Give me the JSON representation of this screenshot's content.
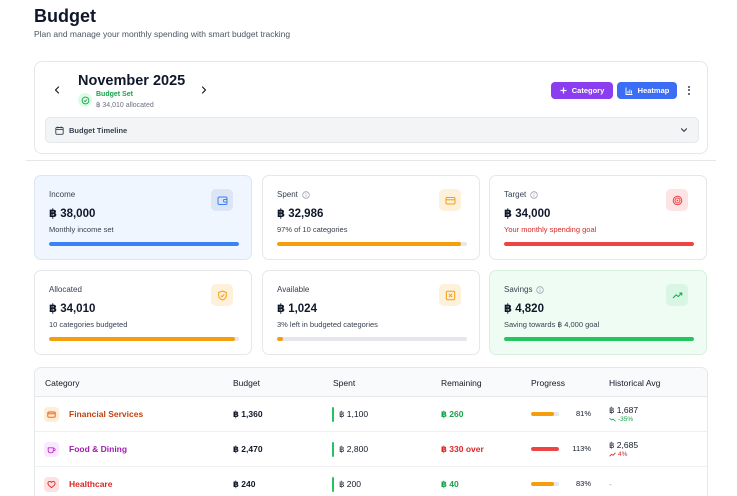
{
  "header": {
    "title": "Budget",
    "subtitle": "Plan and manage your monthly spending with smart budget tracking"
  },
  "month": {
    "title": "November 2025",
    "status_label": "Budget Set",
    "status_sub": "฿ 34,010 allocated",
    "category_button": "Category",
    "heatmap_button": "Heatmap",
    "timeline_label": "Budget Timeline"
  },
  "colors": {
    "accent_purple": "#8b3df0",
    "accent_blue": "#3b6ef5",
    "blue": "#3b82f6",
    "orange": "#f59e0b",
    "red": "#ef4444",
    "green": "#22c55e"
  },
  "stats": {
    "income": {
      "label": "Income",
      "value": "฿ 38,000",
      "desc": "Monthly income set",
      "icon": "wallet-icon",
      "progress": 1.0
    },
    "spent": {
      "label": "Spent",
      "value": "฿ 32,986",
      "desc": "97% of 10 categories",
      "icon": "card-icon",
      "progress": 0.97
    },
    "target": {
      "label": "Target",
      "value": "฿ 34,000",
      "desc": "Your monthly spending goal",
      "icon": "target-icon",
      "progress": 1.0
    },
    "allocated": {
      "label": "Allocated",
      "value": "฿ 34,010",
      "desc": "10 categories budgeted",
      "icon": "shield-icon",
      "progress": 0.98
    },
    "available": {
      "label": "Available",
      "value": "฿ 1,024",
      "desc": "3% left in budgeted categories",
      "icon": "box-x-icon",
      "progress": 0.03
    },
    "savings": {
      "label": "Savings",
      "value": "฿ 4,820",
      "desc": "Saving towards ฿ 4,000 goal",
      "icon": "trend-up-icon",
      "progress": 1.0
    }
  },
  "table": {
    "headers": {
      "category": "Category",
      "budget": "Budget",
      "spent": "Spent",
      "remaining": "Remaining",
      "progress": "Progress",
      "historical": "Historical Avg"
    },
    "rows": [
      {
        "name": "Financial Services",
        "color": "#c2410c",
        "icon": "card-icon",
        "budget": "฿ 1,360",
        "spent": "฿ 1,100",
        "remaining": "฿ 260",
        "remaining_status": "green",
        "progress_pct": "81%",
        "progress": 0.81,
        "progress_color": "#f59e0b",
        "hist": "฿ 1,687",
        "hist_change": "-35%",
        "hist_dir": "down"
      },
      {
        "name": "Food & Dining",
        "color": "#a21caf",
        "icon": "coffee-icon",
        "budget": "฿ 2,470",
        "spent": "฿ 2,800",
        "remaining": "฿ 330 over",
        "remaining_status": "red",
        "progress_pct": "113%",
        "progress": 1.0,
        "progress_color": "#ef4444",
        "hist": "฿ 2,685",
        "hist_change": "4%",
        "hist_dir": "up"
      },
      {
        "name": "Healthcare",
        "color": "#dc2626",
        "icon": "heart-icon",
        "budget": "฿ 240",
        "spent": "฿ 200",
        "remaining": "฿ 40",
        "remaining_status": "green",
        "progress_pct": "83%",
        "progress": 0.83,
        "progress_color": "#f59e0b",
        "hist": "-"
      }
    ]
  }
}
